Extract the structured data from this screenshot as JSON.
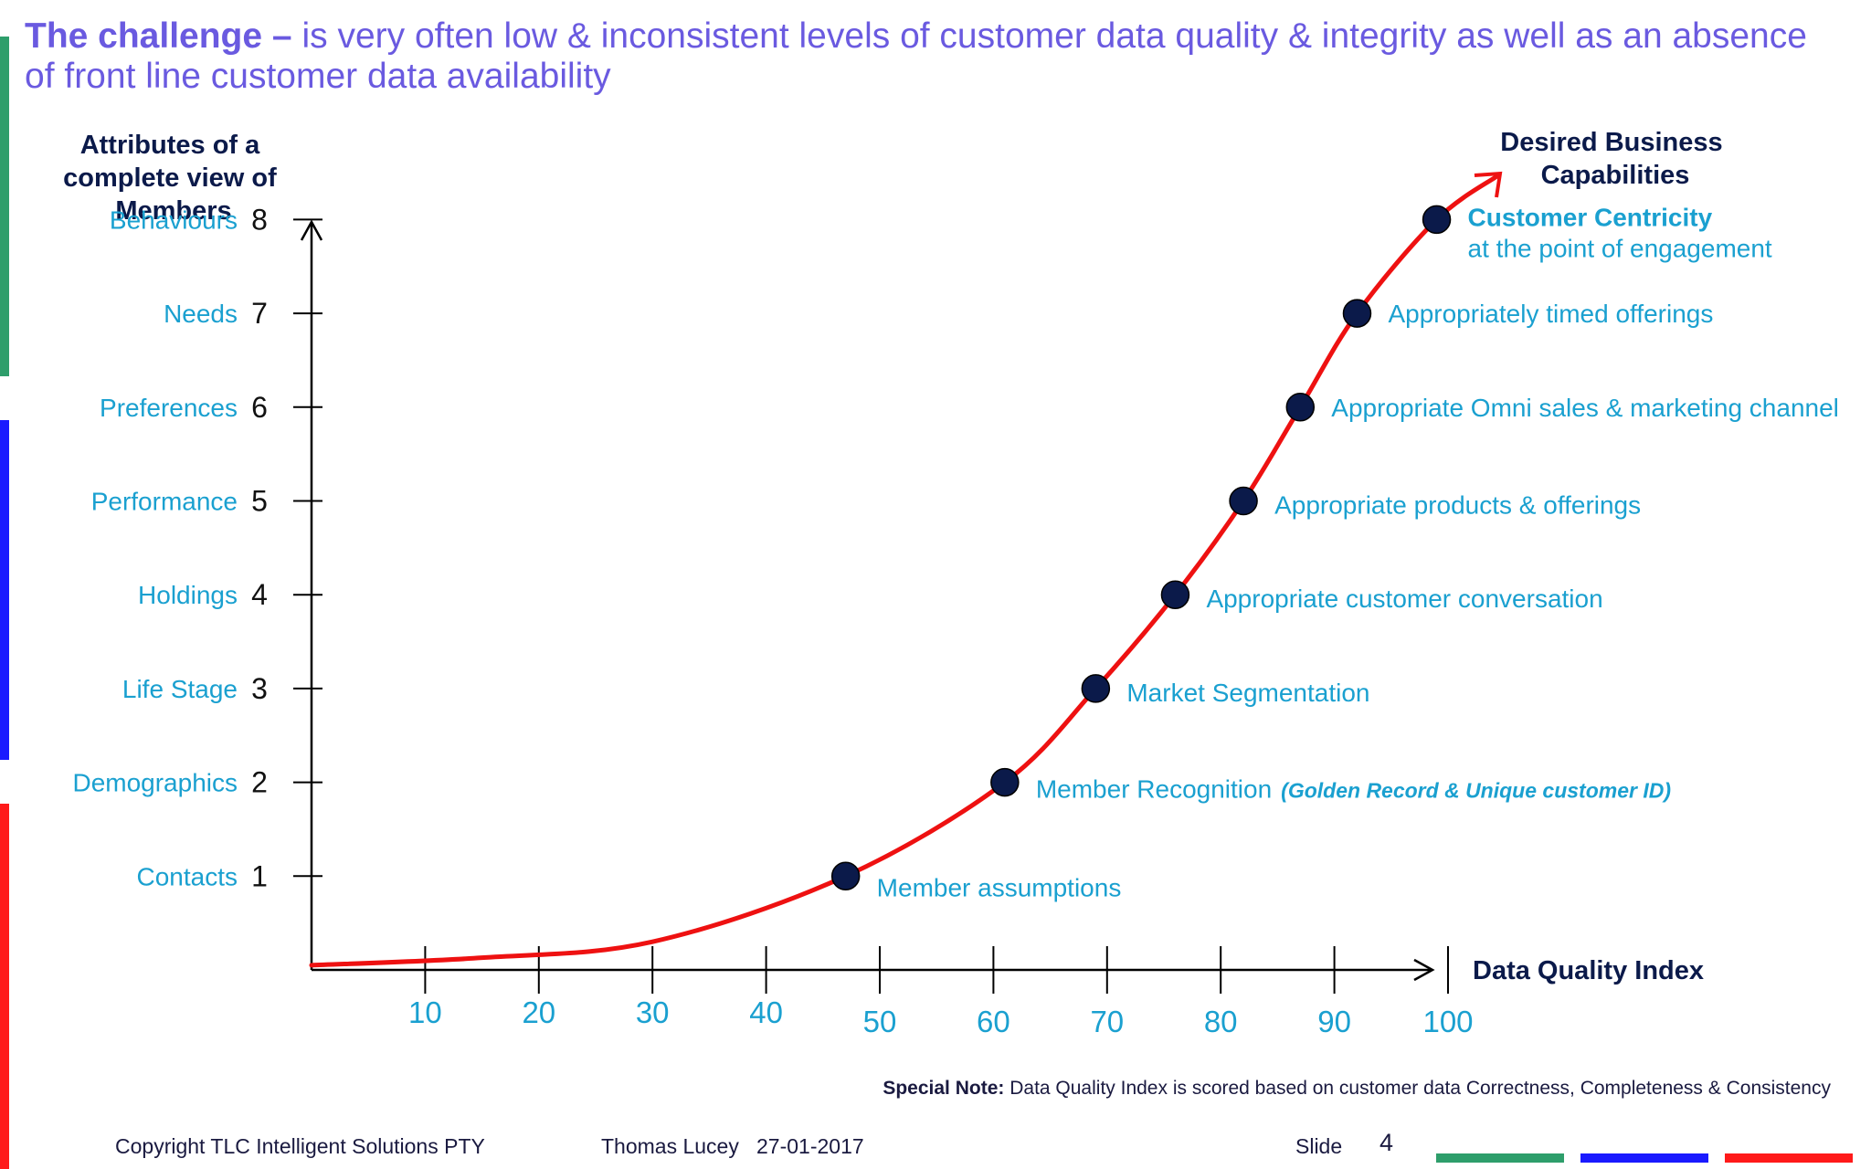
{
  "title": {
    "lead": "The challenge –",
    "text": " is very often low & inconsistent levels of customer data quality & integrity as well as an absence of front line customer data availability"
  },
  "colors": {
    "title": "#6a5ae0",
    "curve": "#ee1111",
    "label": "#1aa0d0",
    "dark": "#0b1a4a",
    "bar_green": "#2e9e6b",
    "bar_blue": "#1a1aff",
    "bar_red": "#ff1a1a"
  },
  "chart_data": {
    "type": "line",
    "ylabel": "Attributes of a complete view of Members",
    "xlabel": "Data Quality Index",
    "arrow_label": "Desired Business Capabilities",
    "xlim": [
      0,
      100
    ],
    "ylim": [
      0,
      8
    ],
    "x_ticks": [
      "10",
      "20",
      "30",
      "40",
      "50",
      "60",
      "70",
      "80",
      "90",
      "100"
    ],
    "y_ticks": [
      {
        "value": 1,
        "num": "1",
        "name": "Contacts"
      },
      {
        "value": 2,
        "num": "2",
        "name": "Demographics"
      },
      {
        "value": 3,
        "num": "3",
        "name": "Life Stage"
      },
      {
        "value": 4,
        "num": "4",
        "name": "Holdings"
      },
      {
        "value": 5,
        "num": "5",
        "name": "Performance"
      },
      {
        "value": 6,
        "num": "6",
        "name": "Preferences"
      },
      {
        "value": 7,
        "num": "7",
        "name": "Needs"
      },
      {
        "value": 8,
        "num": "8",
        "name": "Behaviours"
      }
    ],
    "points": [
      {
        "x": 47,
        "y": 1,
        "label": "Member assumptions"
      },
      {
        "x": 61,
        "y": 2,
        "label": "Member Recognition",
        "note": "(Golden Record & Unique customer ID)"
      },
      {
        "x": 69,
        "y": 3,
        "label": "Market Segmentation"
      },
      {
        "x": 76,
        "y": 4,
        "label": "Appropriate customer conversation"
      },
      {
        "x": 82,
        "y": 5,
        "label": "Appropriate products & offerings"
      },
      {
        "x": 87,
        "y": 6,
        "label": "Appropriate Omni sales & marketing channel"
      },
      {
        "x": 92,
        "y": 7,
        "label": "Appropriately timed offerings"
      },
      {
        "x": 99,
        "y": 8,
        "label": "Customer Centricity",
        "sublabel": "at the point of engagement"
      }
    ]
  },
  "note": {
    "bold": "Special Note:",
    "text": " Data Quality Index is scored based on customer data Correctness, Completeness & Consistency"
  },
  "footer": {
    "copyright": "Copyright TLC Intelligent Solutions PTY",
    "author_date": "Thomas Lucey   27-01-2017",
    "slide_label": "Slide",
    "slide_num": "4"
  }
}
